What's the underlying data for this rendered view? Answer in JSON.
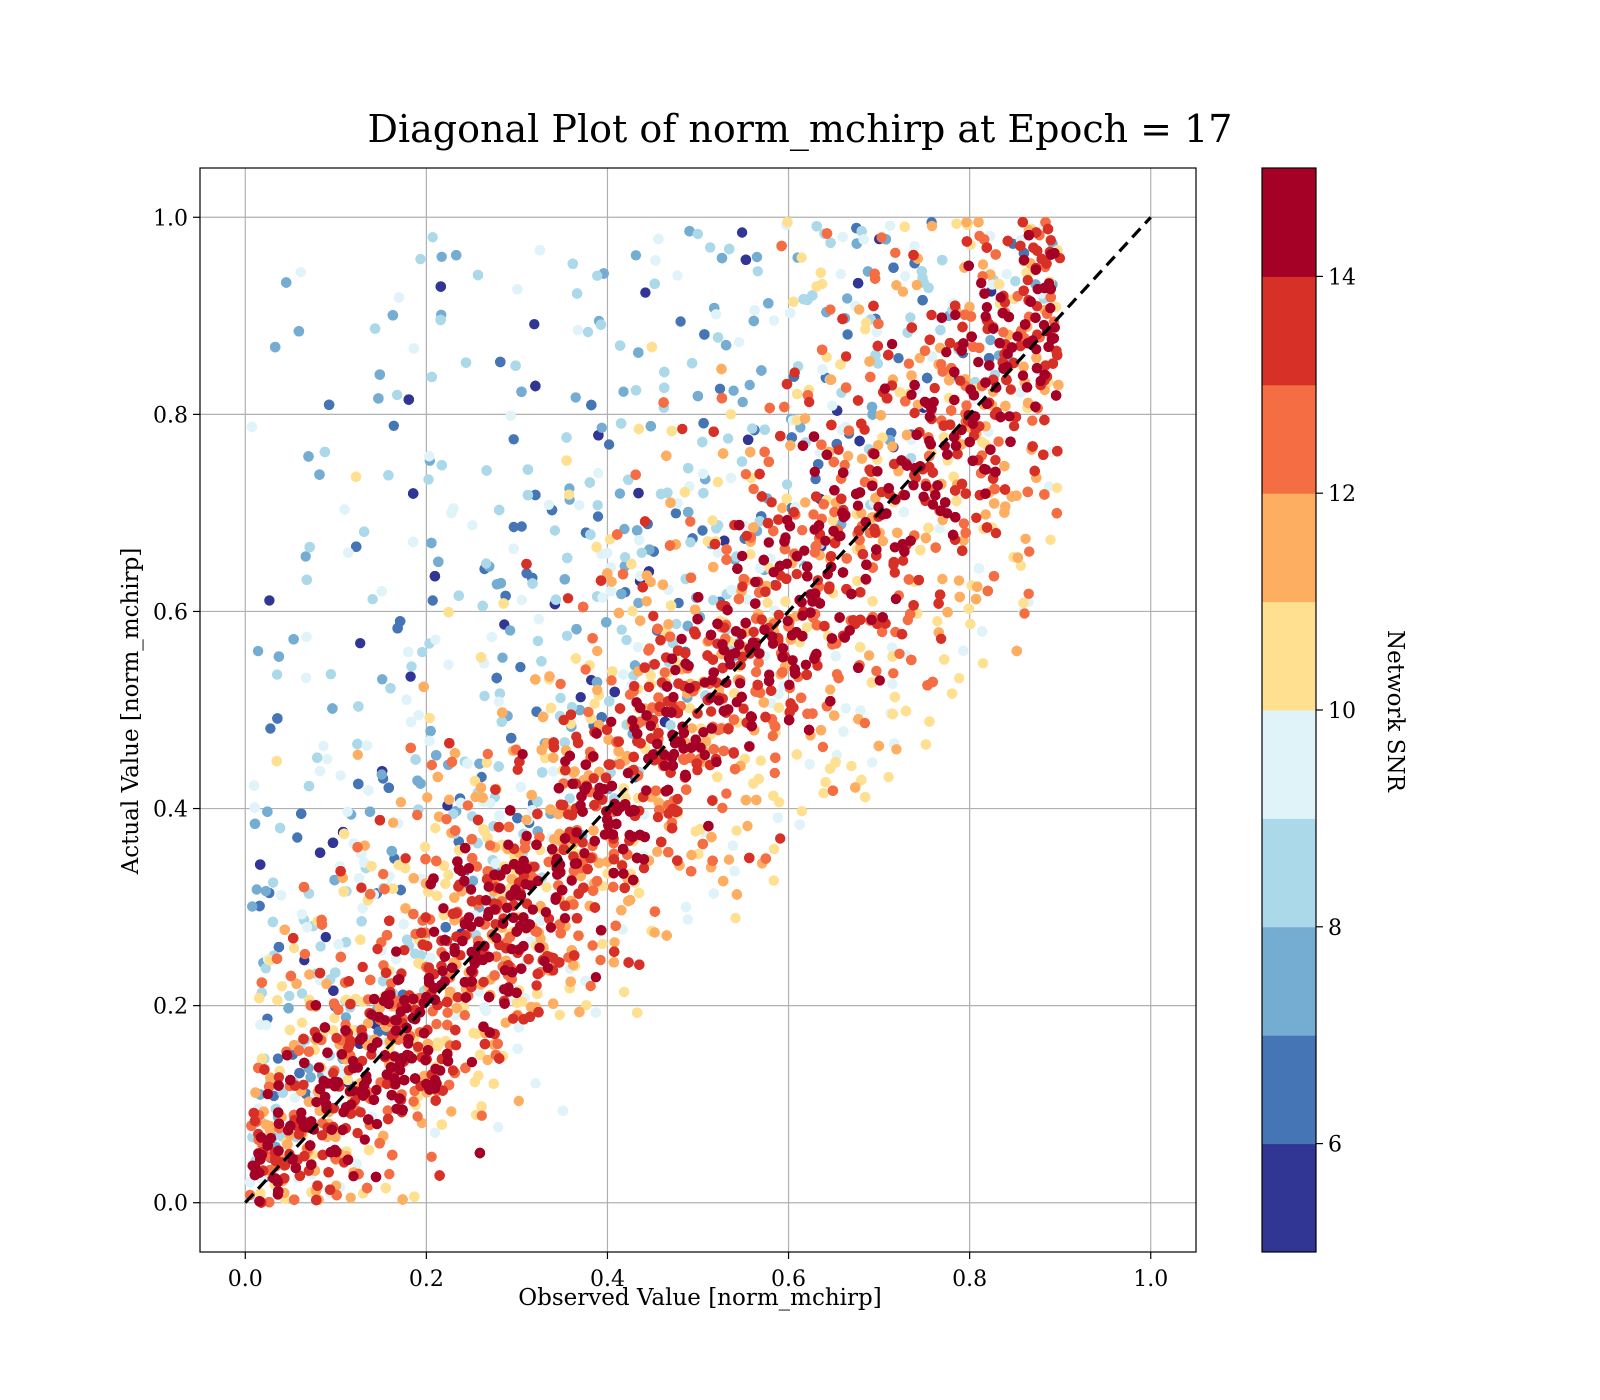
{
  "chart_data": {
    "type": "scatter",
    "title": "Diagonal Plot of norm_mchirp at Epoch = 17",
    "xlabel": "Observed Value [norm_mchirp]",
    "ylabel": "Actual Value [norm_mchirp]",
    "xlim": [
      -0.05,
      1.05
    ],
    "ylim": [
      -0.05,
      1.05
    ],
    "xticks": [
      0.0,
      0.2,
      0.4,
      0.6,
      0.8,
      1.0
    ],
    "yticks": [
      0.0,
      0.2,
      0.4,
      0.6,
      0.8,
      1.0
    ],
    "xtick_labels": [
      "0.0",
      "0.2",
      "0.4",
      "0.6",
      "0.8",
      "1.0"
    ],
    "ytick_labels": [
      "0.0",
      "0.2",
      "0.4",
      "0.6",
      "0.8",
      "1.0"
    ],
    "grid": true,
    "reference_line": {
      "style": "dashed",
      "color": "#000000",
      "from": [
        0,
        0
      ],
      "to": [
        1,
        1
      ]
    },
    "colorbar": {
      "label": "Network SNR",
      "range": [
        5,
        15
      ],
      "ticks": [
        6,
        8,
        10,
        12,
        14
      ],
      "tick_labels": [
        "6",
        "8",
        "10",
        "12",
        "14"
      ],
      "colors": [
        "#313695",
        "#4575b4",
        "#74add1",
        "#abd9e9",
        "#e0f3f8",
        "#fee090",
        "#fdae61",
        "#f46d43",
        "#d73027",
        "#a50026"
      ]
    },
    "series": [
      {
        "color_by": "Network SNR"
      }
    ],
    "point_generation": {
      "description_of_data_extent": "approx distribution: x in [0,0.9], y in [0,1.0]; high SNR points cluster on diagonal",
      "count": 9000
    }
  }
}
